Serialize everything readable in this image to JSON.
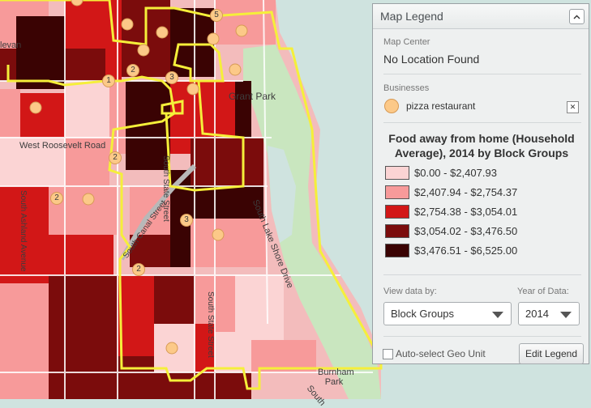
{
  "map": {
    "labels": {
      "grant_park": "Grant Park",
      "west_roosevelt": "West Roosevelt Road",
      "south_state_1": "South State Street",
      "south_state_2": "South State Street",
      "south_ashland": "South Ashland Avenue",
      "south_lake_shore": "South Lake Shore Drive",
      "burnham_park": "Burnham Park",
      "south_canal": "South Canal Street",
      "levan": "levan",
      "south_edge": "South"
    },
    "cluster_markers": [
      "5",
      "2",
      "1",
      "3",
      "2",
      "2",
      "3",
      "2"
    ],
    "colors": {
      "class1": "#fbd4d4",
      "class2": "#f79a9a",
      "class3": "#d21717",
      "class4": "#7b0c0c",
      "class5": "#3a0303",
      "boundary": "#f5ef3a",
      "water": "#cfe3df",
      "park": "#c9e6bf",
      "marker": "#fcc988"
    }
  },
  "legend_panel": {
    "title": "Map Legend",
    "map_center_label": "Map Center",
    "map_center_value": "No Location Found",
    "businesses_label": "Businesses",
    "business_item": "pizza restaurant",
    "legend_title_line1": "Food away from home (Household",
    "legend_title_line2": "Average), 2014 by Block Groups",
    "classes": [
      {
        "label": "$0.00 - $2,407.93",
        "color": "#fbd4d4"
      },
      {
        "label": "$2,407.94 - $2,754.37",
        "color": "#f79a9a"
      },
      {
        "label": "$2,754.38 - $3,054.01",
        "color": "#d21717"
      },
      {
        "label": "$3,054.02 - $3,476.50",
        "color": "#7b0c0c"
      },
      {
        "label": "$3,476.51 - $6,525.00",
        "color": "#3a0303"
      }
    ],
    "view_data_label": "View data by:",
    "view_data_value": "Block Groups",
    "year_label": "Year of Data:",
    "year_value": "2014",
    "auto_select_label": "Auto-select Geo Unit",
    "edit_legend_label": "Edit Legend"
  }
}
